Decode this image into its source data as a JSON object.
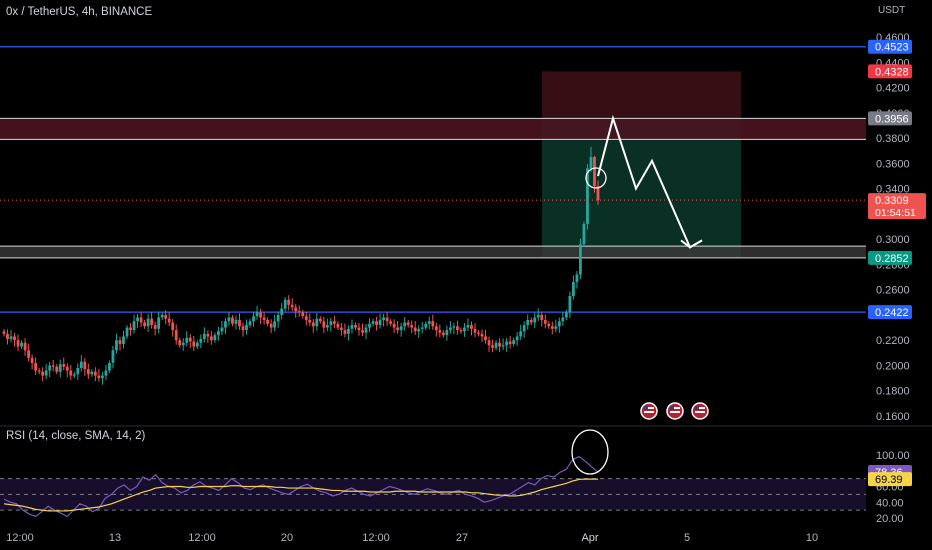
{
  "header": {
    "symbol": "0x / TetherUS, 4h, BINANCE"
  },
  "rsi_header": {
    "label": "RSI (14, close, SMA, 14, 2)"
  },
  "price_axis": {
    "unit": "USDT"
  },
  "colors": {
    "up": "#26a69a",
    "down": "#ef5350",
    "level_line": "#2962ff",
    "rsi_line": "#7e57c2",
    "rsi_ma": "#f5d547",
    "resistance_zone": "#4a1420",
    "target_zone": "#0b3328",
    "stop_zone": "#3a0f14",
    "annotation": "#ffffff"
  },
  "chart_data": [
    {
      "type": "candlestick",
      "title": "0x / TetherUS, 4h, BINANCE",
      "ylabel": "USDT",
      "ylim": [
        0.16,
        0.46
      ],
      "yticks": [
        "0.4600",
        "0.4400",
        "0.4200",
        "0.4000",
        "0.3800",
        "0.3600",
        "0.3400",
        "0.3200",
        "0.3000",
        "0.2800",
        "0.2600",
        "0.2400",
        "0.2200",
        "0.2000",
        "0.1800",
        "0.1600"
      ],
      "xticks": [
        "12:00",
        "13",
        "12:00",
        "20",
        "12:00",
        "27",
        "Apr",
        "5",
        "10"
      ],
      "current_price": {
        "value": "0.3309",
        "countdown": "01:54:51"
      },
      "horizontal_levels": [
        {
          "value": 0.4523,
          "label": "0.4523",
          "color": "#2962ff"
        },
        {
          "value": 0.2422,
          "label": "0.2422",
          "color": "#2962ff"
        }
      ],
      "price_labels": [
        {
          "value": 0.4328,
          "label": "0.4328",
          "color": "#f23645"
        },
        {
          "value": 0.3956,
          "label": "0.3956",
          "color": "#787b86"
        },
        {
          "value": 0.2852,
          "label": "0.2852",
          "color": "#089981"
        }
      ],
      "zones": [
        {
          "name": "resistance",
          "from": 0.379,
          "to": 0.3956
        },
        {
          "name": "support",
          "from": 0.2852,
          "to": 0.2945
        },
        {
          "name": "stop",
          "from": 0.3956,
          "to": 0.4328
        },
        {
          "name": "target",
          "from": 0.2852,
          "to": 0.3956
        }
      ],
      "projection_path": [
        0.35,
        0.3956,
        0.34,
        0.362,
        0.2935,
        0.299
      ],
      "candles": {
        "note": "approximate close-price path",
        "closes": [
          0.225,
          0.221,
          0.223,
          0.22,
          0.215,
          0.218,
          0.212,
          0.206,
          0.202,
          0.196,
          0.195,
          0.192,
          0.196,
          0.2,
          0.199,
          0.195,
          0.201,
          0.199,
          0.196,
          0.192,
          0.193,
          0.198,
          0.203,
          0.197,
          0.193,
          0.195,
          0.192,
          0.19,
          0.192,
          0.196,
          0.202,
          0.212,
          0.22,
          0.217,
          0.223,
          0.23,
          0.228,
          0.235,
          0.238,
          0.234,
          0.231,
          0.237,
          0.232,
          0.229,
          0.238,
          0.24,
          0.237,
          0.234,
          0.228,
          0.22,
          0.216,
          0.218,
          0.222,
          0.219,
          0.215,
          0.218,
          0.221,
          0.225,
          0.223,
          0.22,
          0.224,
          0.227,
          0.23,
          0.235,
          0.238,
          0.233,
          0.236,
          0.231,
          0.228,
          0.232,
          0.235,
          0.239,
          0.242,
          0.238,
          0.236,
          0.233,
          0.23,
          0.235,
          0.24,
          0.245,
          0.252,
          0.248,
          0.246,
          0.243,
          0.242,
          0.239,
          0.236,
          0.234,
          0.231,
          0.237,
          0.235,
          0.23,
          0.232,
          0.235,
          0.233,
          0.23,
          0.228,
          0.225,
          0.229,
          0.232,
          0.23,
          0.228,
          0.226,
          0.23,
          0.233,
          0.235,
          0.232,
          0.236,
          0.238,
          0.235,
          0.233,
          0.23,
          0.228,
          0.231,
          0.234,
          0.232,
          0.23,
          0.227,
          0.229,
          0.23,
          0.233,
          0.235,
          0.231,
          0.228,
          0.226,
          0.224,
          0.228,
          0.23,
          0.231,
          0.228,
          0.227,
          0.23,
          0.232,
          0.229,
          0.226,
          0.225,
          0.223,
          0.22,
          0.216,
          0.214,
          0.218,
          0.215,
          0.216,
          0.219,
          0.217,
          0.22,
          0.223,
          0.227,
          0.232,
          0.236,
          0.234,
          0.238,
          0.24,
          0.236,
          0.233,
          0.231,
          0.229,
          0.231,
          0.235,
          0.238,
          0.242,
          0.255,
          0.266,
          0.272,
          0.296,
          0.312,
          0.356,
          0.365,
          0.342,
          0.3309
        ]
      }
    },
    {
      "type": "line",
      "title": "RSI (14, close, SMA, 14, 2)",
      "ylim": [
        15,
        105
      ],
      "yticks": [
        "100.00",
        "80.00",
        "60.00",
        "40.00",
        "20.00"
      ],
      "bands": [
        70,
        50,
        30
      ],
      "last_values": {
        "rsi": "78.36",
        "rsi_ma": "69.39"
      },
      "series": [
        {
          "name": "RSI",
          "values": [
            44,
            40,
            38,
            30,
            25,
            22,
            28,
            35,
            30,
            26,
            22,
            30,
            38,
            35,
            28,
            32,
            45,
            50,
            58,
            62,
            55,
            60,
            72,
            68,
            75,
            65,
            60,
            58,
            52,
            55,
            62,
            66,
            60,
            58,
            55,
            62,
            70,
            65,
            58,
            56,
            60,
            62,
            58,
            55,
            52,
            50,
            55,
            60,
            63,
            58,
            54,
            52,
            48,
            50,
            55,
            58,
            54,
            50,
            48,
            52,
            56,
            60,
            58,
            55,
            52,
            50,
            54,
            57,
            55,
            52,
            50,
            53,
            55,
            50,
            48,
            45,
            40,
            42,
            45,
            48,
            50,
            55,
            60,
            65,
            62,
            70,
            74,
            72,
            78,
            82,
            94,
            98,
            92,
            85,
            78
          ]
        },
        {
          "name": "RSI SMA",
          "values": [
            38,
            37,
            36,
            35,
            33,
            31,
            30,
            29,
            29,
            29,
            29,
            30,
            31,
            32,
            33,
            34,
            36,
            38,
            41,
            44,
            47,
            50,
            53,
            55,
            58,
            59,
            60,
            60,
            60,
            59,
            59,
            60,
            60,
            60,
            60,
            60,
            61,
            61,
            60,
            60,
            60,
            60,
            60,
            59,
            59,
            58,
            58,
            58,
            58,
            58,
            57,
            56,
            55,
            55,
            54,
            54,
            54,
            54,
            53,
            53,
            53,
            53,
            54,
            54,
            54,
            54,
            53,
            53,
            53,
            53,
            53,
            53,
            53,
            53,
            52,
            52,
            51,
            50,
            49,
            49,
            48,
            48,
            49,
            51,
            53,
            56,
            58,
            60,
            62,
            64,
            67,
            69,
            69.5,
            69.4,
            69.39
          ]
        }
      ]
    }
  ]
}
